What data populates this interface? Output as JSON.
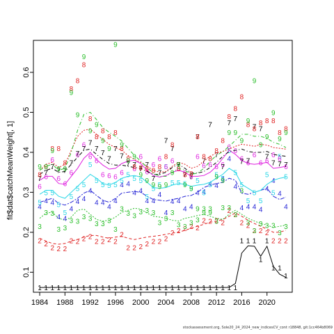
{
  "chart_data": {
    "type": "line",
    "ylabel": "fit$dat$catchMeanWeight[, 1]",
    "xlim": [
      1983,
      2024
    ],
    "ylim": [
      0.05,
      0.68
    ],
    "x_ticks": [
      1984,
      1988,
      1992,
      1996,
      2000,
      2004,
      2008,
      2012,
      2016,
      2020
    ],
    "y_ticks": [
      0.1,
      0.2,
      0.3,
      0.4,
      0.5,
      0.6
    ],
    "y_tick_labels": [
      "0.1",
      "0.2",
      "0.3",
      "0.4",
      "0.5",
      "0.6"
    ],
    "x": [
      1984,
      1985,
      1986,
      1987,
      1988,
      1989,
      1990,
      1991,
      1992,
      1993,
      1994,
      1995,
      1996,
      1997,
      1998,
      1999,
      2000,
      2001,
      2002,
      2003,
      2004,
      2005,
      2006,
      2007,
      2008,
      2009,
      2010,
      2011,
      2012,
      2013,
      2014,
      2015,
      2016,
      2017,
      2018,
      2019,
      2020,
      2021,
      2022,
      2023
    ],
    "series": [
      {
        "name": "1",
        "color": "#000000",
        "dash": "solid",
        "fit": [
          0.062,
          0.062,
          0.062,
          0.062,
          0.062,
          0.062,
          0.062,
          0.062,
          0.062,
          0.062,
          0.062,
          0.062,
          0.062,
          0.062,
          0.062,
          0.062,
          0.062,
          0.062,
          0.062,
          0.062,
          0.062,
          0.062,
          0.062,
          0.062,
          0.062,
          0.062,
          0.062,
          0.062,
          0.062,
          0.062,
          0.062,
          0.072,
          0.148,
          0.166,
          0.165,
          0.14,
          0.165,
          0.115,
          0.095,
          0.087
        ],
        "obs": [
          0.062,
          0.062,
          0.062,
          0.062,
          0.062,
          0.062,
          0.062,
          0.062,
          0.062,
          0.062,
          0.062,
          0.062,
          0.062,
          0.062,
          0.062,
          0.062,
          0.062,
          0.062,
          0.062,
          0.062,
          0.062,
          0.062,
          0.062,
          0.062,
          0.062,
          0.062,
          0.062,
          0.062,
          0.062,
          0.062,
          0.062,
          0.062,
          0.18,
          0.18,
          0.18,
          0.133,
          0.18,
          0.112,
          0.112,
          0.092
        ]
      },
      {
        "name": "2",
        "color": "#df2020",
        "dash": "4,3",
        "fit": [
          0.185,
          0.178,
          0.172,
          0.17,
          0.172,
          0.178,
          0.182,
          0.188,
          0.192,
          0.192,
          0.188,
          0.185,
          0.188,
          0.19,
          0.185,
          0.182,
          0.185,
          0.188,
          0.19,
          0.192,
          0.195,
          0.198,
          0.2,
          0.205,
          0.21,
          0.215,
          0.22,
          0.225,
          0.228,
          0.232,
          0.24,
          0.248,
          0.24,
          0.23,
          0.222,
          0.215,
          0.208,
          0.2,
          0.2,
          0.205
        ],
        "obs": [
          0.18,
          0.172,
          0.162,
          0.16,
          0.16,
          0.18,
          0.178,
          0.185,
          0.19,
          0.178,
          0.178,
          0.182,
          0.178,
          0.195,
          0.162,
          0.162,
          0.165,
          0.172,
          0.178,
          0.178,
          0.185,
          0.2,
          0.205,
          0.21,
          0.215,
          0.212,
          0.23,
          0.228,
          0.23,
          0.225,
          0.255,
          0.245,
          0.225,
          0.218,
          0.205,
          0.205,
          0.2,
          0.18,
          0.18,
          0.18
        ]
      },
      {
        "name": "3",
        "color": "#28bd28",
        "dash": "2,2",
        "fit": [
          0.235,
          0.248,
          0.25,
          0.235,
          0.23,
          0.238,
          0.255,
          0.258,
          0.245,
          0.232,
          0.228,
          0.23,
          0.238,
          0.25,
          0.255,
          0.26,
          0.258,
          0.248,
          0.24,
          0.238,
          0.235,
          0.23,
          0.228,
          0.235,
          0.238,
          0.242,
          0.245,
          0.24,
          0.235,
          0.232,
          0.245,
          0.255,
          0.245,
          0.235,
          0.228,
          0.222,
          0.218,
          0.212,
          0.215,
          0.218
        ],
        "obs": [
          0.215,
          0.25,
          0.248,
          0.208,
          0.212,
          0.23,
          0.228,
          0.24,
          0.235,
          0.222,
          0.222,
          0.23,
          0.208,
          0.26,
          0.248,
          0.242,
          0.252,
          0.255,
          0.25,
          0.225,
          0.235,
          0.25,
          0.22,
          0.215,
          0.225,
          0.232,
          0.26,
          0.26,
          0.228,
          0.262,
          0.262,
          0.245,
          0.305,
          0.225,
          0.205,
          0.222,
          0.218,
          0.218,
          0.2,
          0.215
        ]
      },
      {
        "name": "4",
        "color": "#2222d5",
        "dash": "6,2,2,2",
        "fit": [
          0.275,
          0.28,
          0.285,
          0.272,
          0.268,
          0.275,
          0.285,
          0.298,
          0.305,
          0.292,
          0.28,
          0.275,
          0.285,
          0.298,
          0.3,
          0.302,
          0.3,
          0.29,
          0.282,
          0.28,
          0.278,
          0.282,
          0.285,
          0.29,
          0.292,
          0.3,
          0.312,
          0.318,
          0.322,
          0.325,
          0.335,
          0.33,
          0.298,
          0.295,
          0.3,
          0.305,
          0.31,
          0.29,
          0.282,
          0.288
        ],
        "obs": [
          0.265,
          0.28,
          0.275,
          0.24,
          0.235,
          0.26,
          0.278,
          0.285,
          0.305,
          0.275,
          0.275,
          0.265,
          0.28,
          0.32,
          0.322,
          0.3,
          0.305,
          0.28,
          0.28,
          0.295,
          0.25,
          0.278,
          0.28,
          0.26,
          0.265,
          0.3,
          0.302,
          0.322,
          0.318,
          0.335,
          0.385,
          0.315,
          0.262,
          0.265,
          0.265,
          0.258,
          0.31,
          0.33,
          0.298,
          0.265
        ]
      },
      {
        "name": "5",
        "color": "#28d6e6",
        "dash": "solid",
        "fit": [
          0.295,
          0.305,
          0.305,
          0.29,
          0.285,
          0.3,
          0.315,
          0.33,
          0.345,
          0.335,
          0.322,
          0.318,
          0.325,
          0.335,
          0.34,
          0.342,
          0.338,
          0.325,
          0.312,
          0.31,
          0.312,
          0.318,
          0.322,
          0.32,
          0.315,
          0.318,
          0.32,
          0.325,
          0.335,
          0.345,
          0.36,
          0.35,
          0.32,
          0.31,
          0.3,
          0.305,
          0.32,
          0.33,
          0.335,
          0.338
        ],
        "obs": [
          0.275,
          0.3,
          0.3,
          0.27,
          0.25,
          0.29,
          0.31,
          0.32,
          0.37,
          0.33,
          0.32,
          0.318,
          0.32,
          0.33,
          0.345,
          0.335,
          0.33,
          0.29,
          0.31,
          0.32,
          0.365,
          0.325,
          0.325,
          0.322,
          0.31,
          0.33,
          0.3,
          0.32,
          0.345,
          0.335,
          0.405,
          0.35,
          0.32,
          0.28,
          0.3,
          0.28,
          0.345,
          0.3,
          0.39,
          0.34
        ]
      },
      {
        "name": "6",
        "color": "#df20df",
        "dash": "solid",
        "fit": [
          0.33,
          0.34,
          0.34,
          0.322,
          0.32,
          0.34,
          0.36,
          0.385,
          0.4,
          0.382,
          0.368,
          0.358,
          0.36,
          0.372,
          0.378,
          0.38,
          0.372,
          0.355,
          0.342,
          0.338,
          0.342,
          0.35,
          0.355,
          0.35,
          0.34,
          0.34,
          0.342,
          0.35,
          0.365,
          0.385,
          0.405,
          0.395,
          0.38,
          0.372,
          0.37,
          0.372,
          0.375,
          0.36,
          0.362,
          0.365
        ],
        "obs": [
          0.315,
          0.34,
          0.382,
          0.335,
          0.322,
          0.35,
          0.395,
          0.42,
          0.39,
          0.38,
          0.345,
          0.342,
          0.34,
          0.35,
          0.38,
          0.36,
          0.39,
          0.352,
          0.37,
          0.385,
          0.365,
          0.38,
          0.36,
          0.35,
          0.34,
          0.39,
          0.368,
          0.37,
          0.365,
          0.37,
          0.415,
          0.405,
          0.385,
          0.375,
          0.395,
          0.375,
          0.38,
          0.395,
          0.385,
          0.365
        ]
      },
      {
        "name": "7",
        "color": "#000000",
        "dash": "5,3,1,3",
        "fit": [
          0.345,
          0.355,
          0.36,
          0.35,
          0.352,
          0.37,
          0.388,
          0.405,
          0.408,
          0.395,
          0.382,
          0.372,
          0.368,
          0.368,
          0.365,
          0.362,
          0.36,
          0.352,
          0.345,
          0.345,
          0.35,
          0.362,
          0.37,
          0.36,
          0.348,
          0.348,
          0.352,
          0.362,
          0.375,
          0.39,
          0.402,
          0.405,
          0.408,
          0.402,
          0.4,
          0.4,
          0.402,
          0.395,
          0.392,
          0.39
        ],
        "obs": [
          0.335,
          0.35,
          0.365,
          0.355,
          0.355,
          0.375,
          0.398,
          0.41,
          0.425,
          0.41,
          0.4,
          0.385,
          0.41,
          0.392,
          0.372,
          0.37,
          0.36,
          0.37,
          0.335,
          0.35,
          0.43,
          0.41,
          0.37,
          0.345,
          0.34,
          0.44,
          0.38,
          0.47,
          0.395,
          0.365,
          0.475,
          0.485,
          0.378,
          0.38,
          0.465,
          0.46,
          0.39,
          0.375,
          0.372,
          0.37
        ]
      },
      {
        "name": "8",
        "color": "#df2020",
        "dash": "2,2",
        "fit": [
          0.355,
          0.37,
          0.375,
          0.362,
          0.37,
          0.405,
          0.44,
          0.455,
          0.458,
          0.445,
          0.432,
          0.42,
          0.412,
          0.405,
          0.392,
          0.382,
          0.375,
          0.365,
          0.355,
          0.35,
          0.352,
          0.365,
          0.375,
          0.37,
          0.36,
          0.365,
          0.378,
          0.39,
          0.398,
          0.402,
          0.408,
          0.415,
          0.42,
          0.418,
          0.415,
          0.42,
          0.418,
          0.412,
          0.41,
          0.408
        ],
        "obs": [
          0.345,
          0.365,
          0.41,
          0.41,
          0.375,
          0.56,
          0.58,
          0.62,
          0.485,
          0.44,
          0.455,
          0.44,
          0.45,
          0.41,
          0.385,
          0.365,
          0.362,
          0.36,
          0.355,
          0.365,
          0.39,
          0.42,
          0.36,
          0.345,
          0.348,
          0.44,
          0.39,
          0.385,
          0.405,
          0.43,
          0.49,
          0.51,
          0.54,
          0.47,
          0.46,
          0.475,
          0.48,
          0.48,
          0.45,
          0.46
        ]
      },
      {
        "name": "9",
        "color": "#28bd28",
        "dash": "5,3,1,3",
        "fit": [
          0.355,
          0.365,
          0.37,
          0.355,
          0.36,
          0.4,
          0.455,
          0.495,
          0.5,
          0.482,
          0.462,
          0.45,
          0.44,
          0.428,
          0.41,
          0.392,
          0.378,
          0.362,
          0.348,
          0.34,
          0.34,
          0.35,
          0.36,
          0.355,
          0.345,
          0.348,
          0.36,
          0.378,
          0.392,
          0.402,
          0.415,
          0.43,
          0.445,
          0.445,
          0.44,
          0.44,
          0.435,
          0.425,
          0.42,
          0.412
        ],
        "obs": [
          0.365,
          0.365,
          0.405,
          0.36,
          0.36,
          0.55,
          0.495,
          0.64,
          0.455,
          0.47,
          0.43,
          0.41,
          0.67,
          0.42,
          0.38,
          0.39,
          0.345,
          0.33,
          0.32,
          0.315,
          0.32,
          0.35,
          0.37,
          0.32,
          0.31,
          0.26,
          0.25,
          0.25,
          0.34,
          0.33,
          0.45,
          0.45,
          0.43,
          0.48,
          0.58,
          0.42,
          0.44,
          0.5,
          0.435,
          0.45
        ]
      }
    ]
  },
  "footer_note": "stockassessment.org, Sole20_24_2024_new_indicesCV_cont r18848, git:1cc464b8069"
}
